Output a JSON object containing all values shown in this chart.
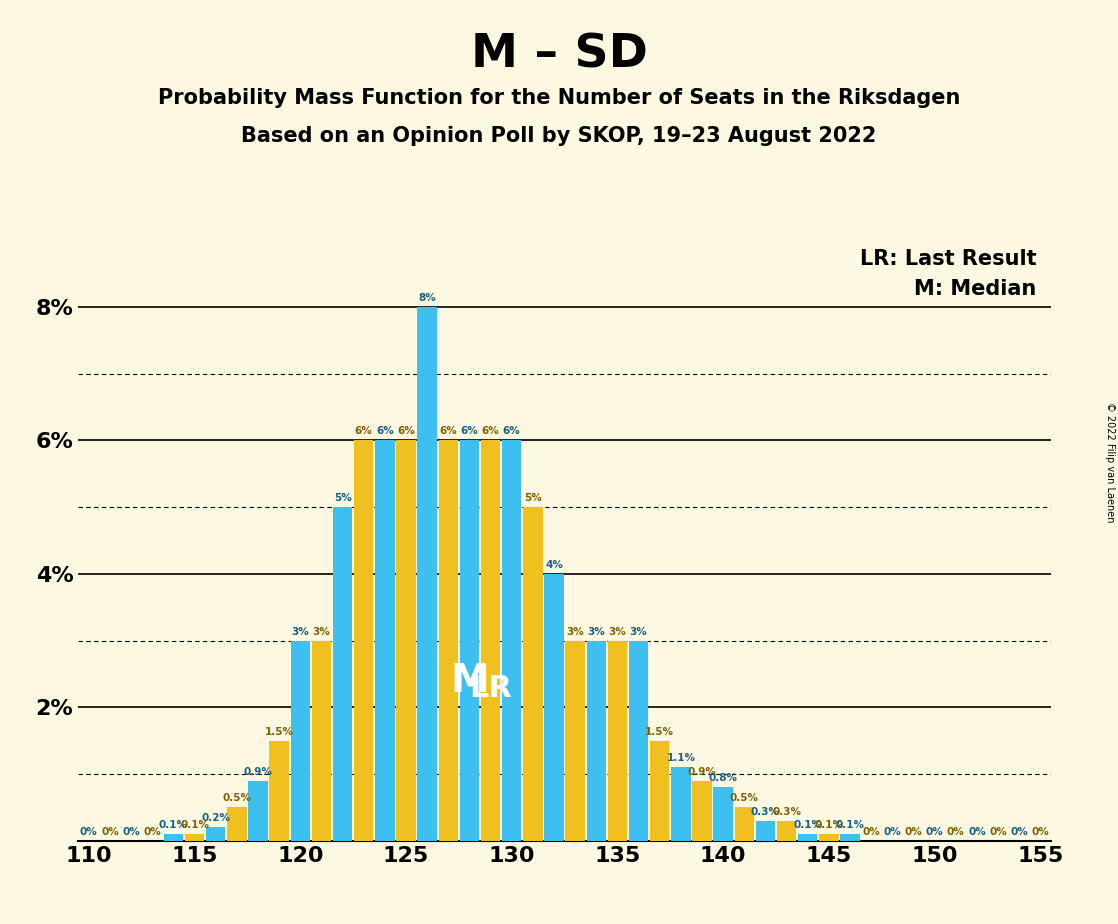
{
  "title": "M – SD",
  "subtitle1": "Probability Mass Function for the Number of Seats in the Riksdagen",
  "subtitle2": "Based on an Opinion Poll by SKOP, 19–23 August 2022",
  "copyright": "© 2022 Filip van Laenen",
  "legend_lr": "LR: Last Result",
  "legend_m": "M: Median",
  "background_color": "#fdf8e1",
  "bar_color_blue": "#3dbfef",
  "bar_color_yellow": "#f0c020",
  "seats_start": 110,
  "seats_end": 155,
  "pmf": [
    0.0,
    0.0,
    0.0,
    0.0,
    0.1,
    0.1,
    0.2,
    0.5,
    0.9,
    1.5,
    3.0,
    3.0,
    5.0,
    6.0,
    6.0,
    6.0,
    8.0,
    6.0,
    6.0,
    6.0,
    6.0,
    5.0,
    4.0,
    3.0,
    3.0,
    3.0,
    3.0,
    1.5,
    1.1,
    0.9,
    0.8,
    0.5,
    0.3,
    0.3,
    0.1,
    0.1,
    0.1,
    0.0,
    0.0,
    0.0,
    0.0,
    0.0,
    0.0,
    0.0,
    0.0,
    0.0
  ],
  "colors": [
    "#3dbfef",
    "#3dbfef",
    "#3dbfef",
    "#3dbfef",
    "#3dbfef",
    "#3dbfef",
    "#3dbfef",
    "#3dbfef",
    "#3dbfef",
    "#3dbfef",
    "#3dbfef",
    "#f0c020",
    "#3dbfef",
    "#f0c020",
    "#3dbfef",
    "#f0c020",
    "#3dbfef",
    "#f0c020",
    "#3dbfef",
    "#f0c020",
    "#3dbfef",
    "#f0c020",
    "#3dbfef",
    "#f0c020",
    "#3dbfef",
    "#f0c020",
    "#3dbfef",
    "#3dbfef",
    "#3dbfef",
    "#3dbfef",
    "#3dbfef",
    "#3dbfef",
    "#3dbfef",
    "#3dbfef",
    "#3dbfef",
    "#3dbfef",
    "#3dbfef",
    "#3dbfef",
    "#3dbfef",
    "#3dbfef",
    "#3dbfef",
    "#3dbfef",
    "#3dbfef",
    "#3dbfef",
    "#3dbfef",
    "#3dbfef"
  ],
  "median_seat": 129,
  "lr_seat": 128,
  "ylim_max": 9.0,
  "xticks": [
    110,
    115,
    120,
    125,
    130,
    135,
    140,
    145,
    150,
    155
  ],
  "ytick_solid": [
    0,
    2,
    4,
    6,
    8
  ],
  "ytick_dotted": [
    1,
    3,
    5,
    7
  ]
}
